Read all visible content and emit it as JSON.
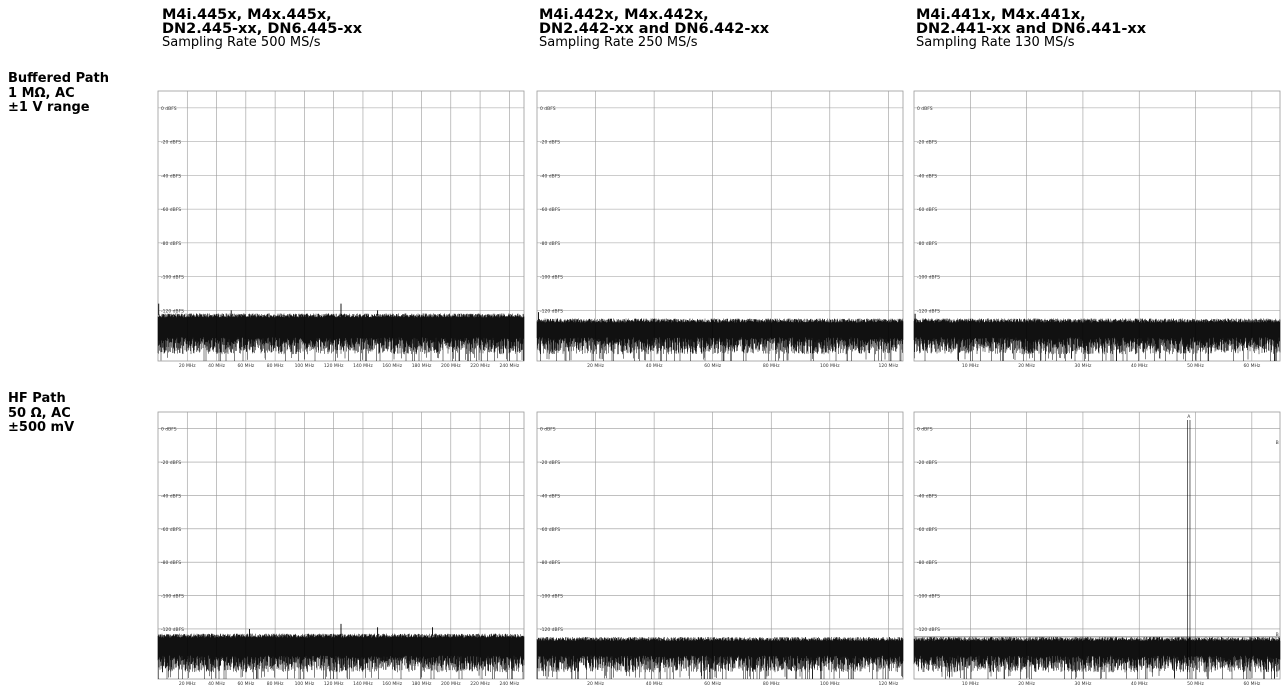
{
  "columns": [
    {
      "model_line1": "M4i.445x, M4x.445x,",
      "model_line2": "DN2.445-xx, DN6.445-xx",
      "rate": "Sampling Rate 500 MS/s"
    },
    {
      "model_line1": "M4i.442x, M4x.442x,",
      "model_line2": "DN2.442-xx and DN6.442-xx",
      "rate": "Sampling Rate 250 MS/s"
    },
    {
      "model_line1": "M4i.441x, M4x.441x,",
      "model_line2": "DN2.441-xx and DN6.441-xx",
      "rate": "Sampling Rate 130 MS/s"
    }
  ],
  "rows": [
    {
      "line1": "Buffered Path",
      "line2": "1 MΩ, AC",
      "line3": "±1 V range"
    },
    {
      "line1": "HF Path",
      "line2": "50 Ω, AC",
      "line3": "±500 mV"
    }
  ],
  "colors": {
    "trace": "#000000",
    "grid": "#9a9a9a",
    "background": "#ffffff"
  },
  "chart_data": [
    {
      "type": "line",
      "row": 0,
      "col": 0,
      "y_ticks": [
        "0 dBFS",
        "-20 dBFS",
        "-40 dBFS",
        "-60 dBFS",
        "-80 dBFS",
        "-100 dBFS",
        "-120 dBFS"
      ],
      "x_ticks": [
        "20 MHz",
        "40 MHz",
        "60 MHz",
        "80 MHz",
        "100 MHz",
        "120 MHz",
        "140 MHz",
        "160 MHz",
        "180 MHz",
        "200 MHz",
        "220 MHz",
        "240 MHz"
      ],
      "xlim": [
        0,
        250
      ],
      "ylim": [
        -150,
        10
      ],
      "grid": true,
      "noise_floor_top_dbfs": -123,
      "noise_floor_bottom_dbfs": -148,
      "spurs": [
        {
          "x": 0.5,
          "y": -116
        },
        {
          "x": 50,
          "y": -120
        },
        {
          "x": 125,
          "y": -116
        },
        {
          "x": 150,
          "y": -120
        }
      ],
      "markers": []
    },
    {
      "type": "line",
      "row": 0,
      "col": 1,
      "y_ticks": [
        "0 dBFS",
        "-20 dBFS",
        "-40 dBFS",
        "-60 dBFS",
        "-80 dBFS",
        "-100 dBFS",
        "-120 dBFS"
      ],
      "x_ticks": [
        "20 MHz",
        "40 MHz",
        "60 MHz",
        "80 MHz",
        "100 MHz",
        "120 MHz"
      ],
      "xlim": [
        0,
        125
      ],
      "ylim": [
        -150,
        10
      ],
      "grid": true,
      "noise_floor_top_dbfs": -126,
      "noise_floor_bottom_dbfs": -148,
      "spurs": [
        {
          "x": 0.5,
          "y": -121
        }
      ],
      "markers": []
    },
    {
      "type": "line",
      "row": 0,
      "col": 2,
      "y_ticks": [
        "0 dBFS",
        "-20 dBFS",
        "-40 dBFS",
        "-60 dBFS",
        "-80 dBFS",
        "-100 dBFS",
        "-120 dBFS"
      ],
      "x_ticks": [
        "10 MHz",
        "20 MHz",
        "30 MHz",
        "40 MHz",
        "50 MHz",
        "60 MHz"
      ],
      "xlim": [
        0,
        65
      ],
      "ylim": [
        -150,
        10
      ],
      "grid": true,
      "noise_floor_top_dbfs": -126,
      "noise_floor_bottom_dbfs": -148,
      "spurs": [
        {
          "x": 0.2,
          "y": -122
        }
      ],
      "markers": []
    },
    {
      "type": "line",
      "row": 1,
      "col": 0,
      "y_ticks": [
        "0 dBFS",
        "-20 dBFS",
        "-40 dBFS",
        "-60 dBFS",
        "-80 dBFS",
        "-100 dBFS",
        "-120 dBFS"
      ],
      "x_ticks": [
        "20 MHz",
        "40 MHz",
        "60 MHz",
        "80 MHz",
        "100 MHz",
        "120 MHz",
        "140 MHz",
        "160 MHz",
        "180 MHz",
        "200 MHz",
        "220 MHz",
        "240 MHz"
      ],
      "xlim": [
        0,
        250
      ],
      "ylim": [
        -150,
        10
      ],
      "grid": true,
      "noise_floor_top_dbfs": -124,
      "noise_floor_bottom_dbfs": -148,
      "spurs": [
        {
          "x": 125,
          "y": -117
        },
        {
          "x": 150,
          "y": -119
        },
        {
          "x": 187.5,
          "y": -119
        },
        {
          "x": 62.5,
          "y": -120
        }
      ],
      "markers": []
    },
    {
      "type": "line",
      "row": 1,
      "col": 1,
      "y_ticks": [
        "0 dBFS",
        "-20 dBFS",
        "-40 dBFS",
        "-60 dBFS",
        "-80 dBFS",
        "-100 dBFS",
        "-120 dBFS"
      ],
      "x_ticks": [
        "20 MHz",
        "40 MHz",
        "60 MHz",
        "80 MHz",
        "100 MHz",
        "120 MHz"
      ],
      "xlim": [
        0,
        125
      ],
      "ylim": [
        -150,
        10
      ],
      "grid": true,
      "noise_floor_top_dbfs": -126,
      "noise_floor_bottom_dbfs": -148,
      "spurs": [],
      "markers": []
    },
    {
      "type": "line",
      "row": 1,
      "col": 2,
      "y_ticks": [
        "0 dBFS",
        "-20 dBFS",
        "-40 dBFS",
        "-60 dBFS",
        "-80 dBFS",
        "-100 dBFS",
        "-120 dBFS"
      ],
      "x_ticks": [
        "10 MHz",
        "20 MHz",
        "30 MHz",
        "40 MHz",
        "50 MHz",
        "60 MHz"
      ],
      "xlim": [
        0,
        65
      ],
      "ylim": [
        -150,
        10
      ],
      "grid": true,
      "noise_floor_top_dbfs": -126,
      "noise_floor_bottom_dbfs": -148,
      "spurs": [],
      "markers": [
        {
          "label": "A",
          "x": 48.8
        },
        {
          "label": "B",
          "x": 64.5
        }
      ]
    }
  ]
}
